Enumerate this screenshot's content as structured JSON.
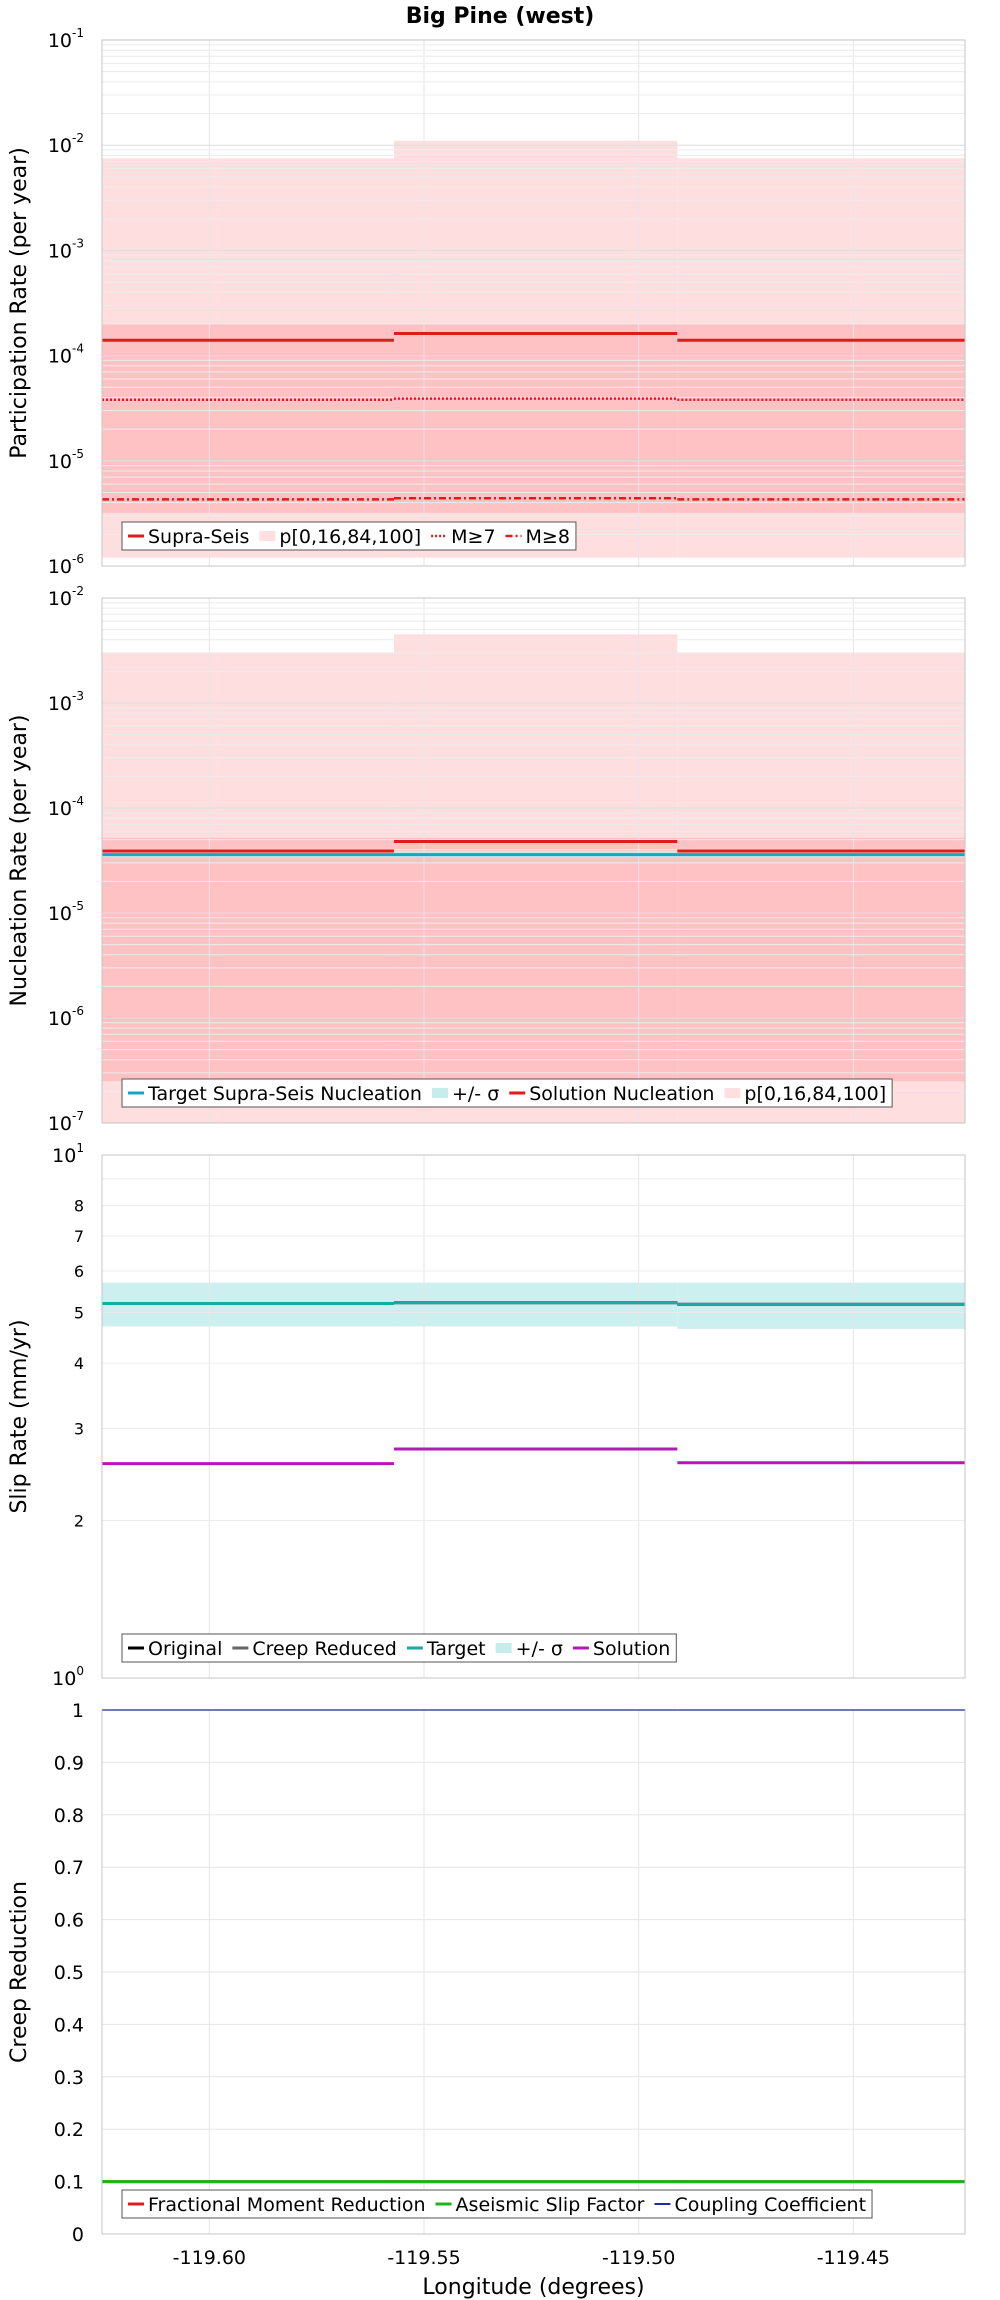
{
  "title": "Big Pine (west)",
  "colors": {
    "supra": "#e31a1c",
    "band_outer": "#ffdedf",
    "band_inner": "#ffc2c4",
    "target": "#1aaaa6",
    "sigma_band": "#c6ecec",
    "solution": "#b419b4",
    "nucl_target": "#19a4c6",
    "nucl_sigma": "#cdd3d4",
    "aseismic": "#1eb41e",
    "coupling": "#1f2aa8",
    "fmr": "#e31a1c",
    "grid": "#e6e6e6"
  },
  "chart_data": [
    {
      "id": "participation",
      "type": "line",
      "ylabel": "Participation Rate (per year)",
      "yscale": "log",
      "ylim": [
        1e-06,
        0.1
      ],
      "ytick_exponents": [
        "-6",
        "-5",
        "-4",
        "-3",
        "-2",
        "-1"
      ],
      "legend_position": "bottom-left",
      "legend": [
        "Supra-Seis",
        "p[0,16,84,100]",
        "M≥7",
        "M≥8"
      ],
      "segments": [
        [
          -119.625,
          -119.557
        ],
        [
          -119.557,
          -119.491
        ],
        [
          -119.491,
          -119.424
        ]
      ],
      "bands": [
        {
          "legend": "p[0,16,84,100]",
          "tone": "outer",
          "low": [
            1.2e-06,
            1.2e-06,
            1.2e-06
          ],
          "high": [
            0.0075,
            0.011,
            0.0075
          ]
        },
        {
          "legend": "p[0,16,84,100]",
          "tone": "inner",
          "low": [
            3.2e-06,
            3.2e-06,
            3.2e-06
          ],
          "high": [
            0.0002,
            0.0002,
            0.0002
          ]
        }
      ],
      "series": [
        {
          "name": "Supra-Seis",
          "style": "solid",
          "values": [
            0.00014,
            0.000162,
            0.00014
          ]
        },
        {
          "name": "M≥7",
          "style": "dotted",
          "values": [
            3.8e-05,
            3.9e-05,
            3.8e-05
          ]
        },
        {
          "name": "M≥8",
          "style": "dashdot",
          "values": [
            4.3e-06,
            4.4e-06,
            4.3e-06
          ]
        }
      ]
    },
    {
      "id": "nucleation",
      "type": "line",
      "ylabel": "Nucleation Rate (per year)",
      "yscale": "log",
      "ylim": [
        1e-07,
        0.01
      ],
      "ytick_exponents": [
        "-7",
        "-6",
        "-5",
        "-4",
        "-3",
        "-2"
      ],
      "legend_position": "bottom-left",
      "legend": [
        "Target Supra-Seis Nucleation",
        "+/- σ",
        "Solution Nucleation",
        "p[0,16,84,100]"
      ],
      "segments": [
        [
          -119.625,
          -119.557
        ],
        [
          -119.557,
          -119.491
        ],
        [
          -119.491,
          -119.424
        ]
      ],
      "bands": [
        {
          "legend": "p[0,16,84,100]",
          "tone": "outer",
          "low": [
            1e-07,
            1e-07,
            1e-07
          ],
          "high": [
            0.003,
            0.0045,
            0.003
          ]
        },
        {
          "legend": "p[0,16,84,100]",
          "tone": "inner",
          "low": [
            2.5e-07,
            2.5e-07,
            2.5e-07
          ],
          "high": [
            5.2e-05,
            5.2e-05,
            5.2e-05
          ]
        },
        {
          "legend": "+/- σ",
          "tone": "sigma",
          "low": [
            3.4e-05,
            3.4e-05,
            3.4e-05
          ],
          "high": [
            3.9e-05,
            3.9e-05,
            3.9e-05
          ]
        }
      ],
      "series": [
        {
          "name": "Target Supra-Seis Nucleation",
          "style": "solid",
          "values": [
            3.6e-05,
            3.6e-05,
            3.6e-05
          ]
        },
        {
          "name": "Solution Nucleation",
          "style": "solid",
          "values": [
            3.9e-05,
            4.8e-05,
            3.9e-05
          ]
        }
      ]
    },
    {
      "id": "slip",
      "type": "line",
      "ylabel": "Slip Rate (mm/yr)",
      "yscale": "log",
      "ylim": [
        1,
        10
      ],
      "ytick_labels": [
        "2",
        "3",
        "4",
        "5",
        "6",
        "7",
        "8"
      ],
      "legend_position": "bottom-left",
      "legend": [
        "Original",
        "Creep Reduced",
        "Target",
        "+/- σ",
        "Solution"
      ],
      "segments": [
        [
          -119.625,
          -119.557
        ],
        [
          -119.557,
          -119.491
        ],
        [
          -119.491,
          -119.424
        ]
      ],
      "bands": [
        {
          "legend": "+/- σ",
          "tone": "sigma",
          "low": [
            4.7,
            4.7,
            4.65
          ],
          "high": [
            5.7,
            5.7,
            5.7
          ]
        }
      ],
      "series": [
        {
          "name": "Original",
          "style": "solid",
          "values": [
            5.2,
            5.22,
            5.18
          ]
        },
        {
          "name": "Creep Reduced",
          "style": "solid",
          "values": [
            5.2,
            5.22,
            5.18
          ]
        },
        {
          "name": "Target",
          "style": "solid",
          "values": [
            5.2,
            5.22,
            5.18
          ]
        },
        {
          "name": "Solution",
          "style": "solid",
          "values": [
            2.57,
            2.74,
            2.58
          ]
        }
      ]
    },
    {
      "id": "creep",
      "type": "line",
      "ylabel": "Creep Reduction",
      "yscale": "linear",
      "ylim": [
        0,
        1
      ],
      "ytick_labels": [
        "0",
        "0.1",
        "0.2",
        "0.3",
        "0.4",
        "0.5",
        "0.6",
        "0.7",
        "0.8",
        "0.9",
        "1"
      ],
      "xlabel": "Longitude (degrees)",
      "xlim": [
        -119.625,
        -119.424
      ],
      "xticks": [
        -119.6,
        -119.55,
        -119.5,
        -119.45
      ],
      "xtick_labels": [
        "-119.60",
        "-119.55",
        "-119.50",
        "-119.45"
      ],
      "legend_position": "bottom-left",
      "legend": [
        "Fractional Moment Reduction",
        "Aseismic Slip Factor",
        "Coupling Coefficient"
      ],
      "segments": [
        [
          -119.625,
          -119.557
        ],
        [
          -119.557,
          -119.491
        ],
        [
          -119.491,
          -119.424
        ]
      ],
      "bands": [],
      "series": [
        {
          "name": "Fractional Moment Reduction",
          "style": "solid",
          "values": [
            0.1,
            0.1,
            0.1
          ]
        },
        {
          "name": "Aseismic Slip Factor",
          "style": "solid",
          "values": [
            0.1,
            0.1,
            0.1
          ]
        },
        {
          "name": "Coupling Coefficient",
          "style": "solid",
          "values": [
            1,
            1,
            1
          ]
        }
      ]
    }
  ]
}
